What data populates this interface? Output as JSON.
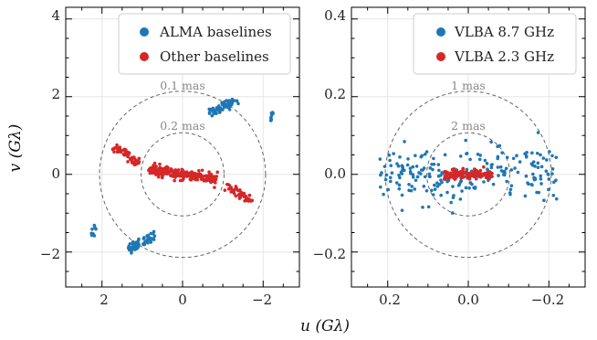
{
  "chart_data": [
    {
      "type": "scatter",
      "xlim": [
        2.9,
        -2.9
      ],
      "ylim": [
        -2.9,
        4.3
      ],
      "xticks": [
        2,
        0,
        -2
      ],
      "yticks": [
        -2,
        0,
        2,
        4
      ],
      "xtick_labels": [
        "2",
        "0",
        "−2"
      ],
      "ytick_labels": [
        "−2",
        "0",
        "2",
        "4"
      ],
      "grid": true,
      "ylabel": "v (Gλ)",
      "legend_position": "top-right",
      "series": [
        {
          "name": "ALMA baselines",
          "color": "#1f77b4",
          "clusters": [
            {
              "center": [
                -1.0,
                1.75
              ],
              "major": 0.38,
              "minor": 0.12,
              "angle_deg": -25,
              "n": 60
            },
            {
              "center": [
                1.0,
                -1.75
              ],
              "major": 0.38,
              "minor": 0.12,
              "angle_deg": -25,
              "n": 60
            },
            {
              "center": [
                -2.2,
                1.45
              ],
              "major": 0.15,
              "minor": 0.05,
              "angle_deg": -70,
              "n": 8
            },
            {
              "center": [
                2.2,
                -1.45
              ],
              "major": 0.15,
              "minor": 0.05,
              "angle_deg": -70,
              "n": 8
            }
          ]
        },
        {
          "name": "Other baselines",
          "color": "#d62728",
          "clusters": [
            {
              "center": [
                0.0,
                0.0
              ],
              "major": 0.85,
              "minor": 0.13,
              "angle_deg": 8,
              "n": 220
            },
            {
              "center": [
                1.4,
                0.5
              ],
              "major": 0.38,
              "minor": 0.1,
              "angle_deg": 35,
              "n": 55
            },
            {
              "center": [
                -1.4,
                -0.5
              ],
              "major": 0.38,
              "minor": 0.1,
              "angle_deg": 35,
              "n": 55
            }
          ]
        }
      ],
      "annotations": [
        {
          "text": "0.1 mas",
          "radius": 2.06
        },
        {
          "text": "0.2 mas",
          "radius": 1.03
        }
      ]
    },
    {
      "type": "scatter",
      "xlim": [
        0.29,
        -0.29
      ],
      "ylim": [
        -0.29,
        0.43
      ],
      "xticks": [
        0.2,
        0,
        -0.2
      ],
      "yticks": [
        -0.2,
        0,
        0.2,
        0.4
      ],
      "xtick_labels": [
        "0.2",
        "0.0",
        "−0.2"
      ],
      "ytick_labels": [
        "−0.2",
        "0.0",
        "0.2",
        "0.4"
      ],
      "grid": true,
      "xlabel": "u (Gλ)",
      "legend_position": "top-right",
      "series": [
        {
          "name": "VLBA 8.7 GHz",
          "color": "#1f77b4",
          "clusters": [
            {
              "center": [
                0.0,
                0.0
              ],
              "major": 0.22,
              "minor": 0.07,
              "angle_deg": 0,
              "n": 230
            }
          ]
        },
        {
          "name": "VLBA 2.3 GHz",
          "color": "#d62728",
          "clusters": [
            {
              "center": [
                0.0,
                0.0
              ],
              "major": 0.06,
              "minor": 0.012,
              "angle_deg": 0,
              "n": 140
            }
          ]
        }
      ],
      "annotations": [
        {
          "text": "1 mas",
          "radius": 0.206
        },
        {
          "text": "2 mas",
          "radius": 0.103
        }
      ]
    }
  ]
}
